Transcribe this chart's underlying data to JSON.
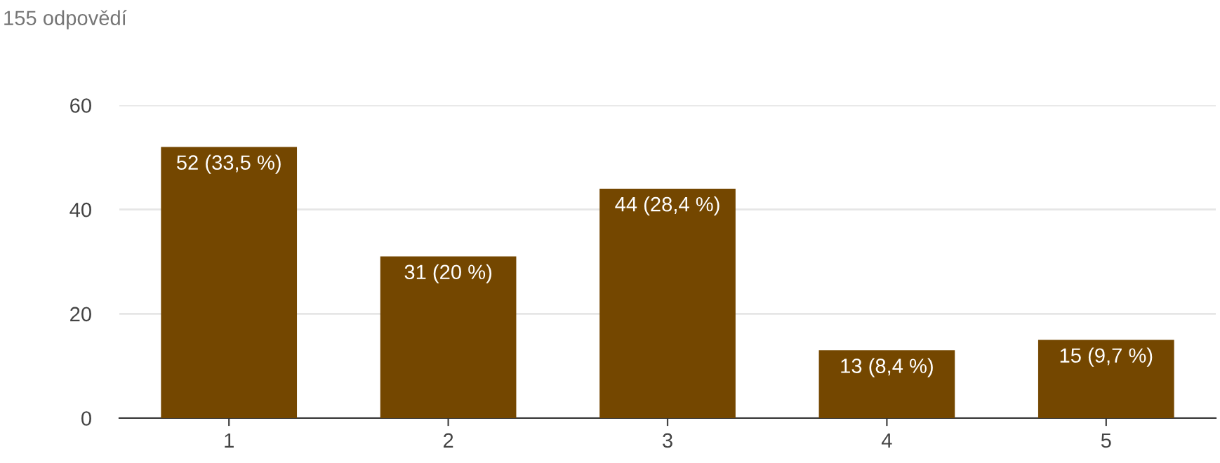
{
  "chart_data": {
    "type": "bar",
    "title": "155 odpovědí",
    "categories": [
      "1",
      "2",
      "3",
      "4",
      "5"
    ],
    "values": [
      52,
      31,
      44,
      13,
      15
    ],
    "value_labels": [
      "52 (33,5 %)",
      "31 (20 %)",
      "44 (28,4 %)",
      "13 (8,4 %)",
      "15 (9,7 %)"
    ],
    "color": "#744700",
    "ylim": [
      0,
      60
    ],
    "yticks": [
      0,
      20,
      40,
      60
    ],
    "grid": "y"
  }
}
